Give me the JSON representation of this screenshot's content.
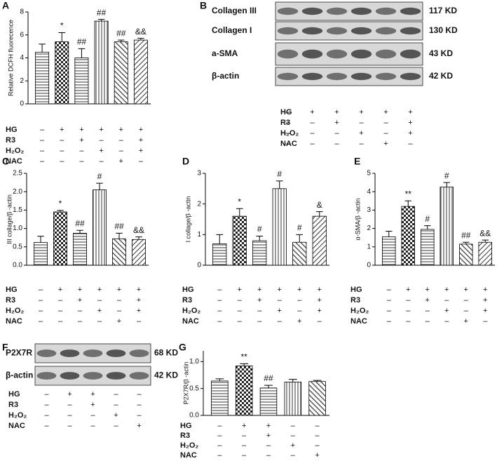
{
  "chart_data": [
    {
      "panel": "A",
      "type": "bar",
      "ylabel": "Relative DCFH fluorecence",
      "ylim": [
        0,
        8
      ],
      "yticks": [
        0,
        2,
        4,
        6,
        8
      ],
      "values": [
        4.5,
        5.4,
        4.0,
        7.2,
        5.4,
        5.55
      ],
      "errors": [
        0.7,
        0.8,
        0.8,
        0.15,
        0.15,
        0.15
      ],
      "annotations": [
        null,
        "*",
        "##",
        "##",
        "##",
        "&&"
      ],
      "conditions": [
        {
          "name": "HG",
          "marks": [
            "–",
            "+",
            "+",
            "+",
            "+",
            "+"
          ]
        },
        {
          "name": "R3",
          "marks": [
            "–",
            "–",
            "+",
            "–",
            "–",
            "+"
          ]
        },
        {
          "name": "H₂O₂",
          "marks": [
            "–",
            "–",
            "–",
            "+",
            "–",
            "+"
          ]
        },
        {
          "name": "NAC",
          "marks": [
            "–",
            "–",
            "–",
            "–",
            "+",
            "–"
          ]
        }
      ]
    },
    {
      "panel": "B",
      "type": "blot",
      "rows": [
        {
          "name": "Collagen III",
          "size": "117 KD"
        },
        {
          "name": "Collagen I",
          "size": "130 KD"
        },
        {
          "name": "a-SMA",
          "size": "43 KD"
        },
        {
          "name": "β-actin",
          "size": "42 KD"
        }
      ],
      "conditions": [
        {
          "name": "HG",
          "marks": [
            "–",
            "+",
            "+",
            "+",
            "+",
            "+"
          ]
        },
        {
          "name": "R3",
          "marks": [
            "–",
            "–",
            "+",
            "–",
            "–",
            "+"
          ]
        },
        {
          "name": "H₂O₂",
          "marks": [
            "–",
            "–",
            "–",
            "+",
            "–",
            "+"
          ]
        },
        {
          "name": "NAC",
          "marks": [
            "–",
            "–",
            "–",
            "–",
            "+",
            "–"
          ]
        }
      ]
    },
    {
      "panel": "C",
      "type": "bar",
      "ylabel": "III collage/β -actin",
      "ylim": [
        0,
        2.5
      ],
      "yticks": [
        {
          "value": 0,
          "label": "0.0"
        },
        0.5,
        {
          "value": 1,
          "label": "1.0"
        },
        1.5,
        {
          "value": 2,
          "label": "2.0"
        },
        2.5
      ],
      "values": [
        0.62,
        1.45,
        0.87,
        2.05,
        0.72,
        0.7
      ],
      "errors": [
        0.17,
        0.04,
        0.08,
        0.18,
        0.15,
        0.07
      ],
      "annotations": [
        null,
        "*",
        "##",
        "#",
        "##",
        "&&"
      ],
      "conditions": [
        {
          "name": "HG",
          "marks": [
            "–",
            "+",
            "+",
            "+",
            "+",
            "+"
          ]
        },
        {
          "name": "R3",
          "marks": [
            "–",
            "–",
            "+",
            "–",
            "–",
            "+"
          ]
        },
        {
          "name": "H₂O₂",
          "marks": [
            "–",
            "–",
            "–",
            "+",
            "–",
            "+"
          ]
        },
        {
          "name": "NAC",
          "marks": [
            "–",
            "–",
            "–",
            "–",
            "+",
            "–"
          ]
        }
      ]
    },
    {
      "panel": "D",
      "type": "bar",
      "ylabel": "I collage/β -actin",
      "ylim": [
        0,
        3
      ],
      "yticks": [
        0,
        1,
        2,
        3
      ],
      "values": [
        0.7,
        1.6,
        0.8,
        2.5,
        0.75,
        1.6
      ],
      "errors": [
        0.3,
        0.25,
        0.15,
        0.25,
        0.25,
        0.15
      ],
      "annotations": [
        null,
        "*",
        "#",
        "#",
        "#",
        "&"
      ],
      "conditions": [
        {
          "name": "HG",
          "marks": [
            "–",
            "+",
            "+",
            "+",
            "+",
            "+"
          ]
        },
        {
          "name": "R3",
          "marks": [
            "–",
            "–",
            "+",
            "–",
            "–",
            "+"
          ]
        },
        {
          "name": "H₂O₂",
          "marks": [
            "–",
            "–",
            "–",
            "+",
            "–",
            "+"
          ]
        },
        {
          "name": "NAC",
          "marks": [
            "–",
            "–",
            "–",
            "–",
            "+",
            "–"
          ]
        }
      ]
    },
    {
      "panel": "E",
      "type": "bar",
      "ylabel": "α-SMA/β -actin",
      "ylim": [
        0,
        5
      ],
      "yticks": [
        0,
        1,
        2,
        3,
        4,
        5
      ],
      "values": [
        1.55,
        3.2,
        1.95,
        4.25,
        1.15,
        1.25
      ],
      "errors": [
        0.3,
        0.3,
        0.2,
        0.25,
        0.1,
        0.12
      ],
      "annotations": [
        null,
        "**",
        "#",
        "#",
        "##",
        "&&"
      ],
      "conditions": [
        {
          "name": "HG",
          "marks": [
            "–",
            "+",
            "+",
            "+",
            "+",
            "+"
          ]
        },
        {
          "name": "R3",
          "marks": [
            "–",
            "–",
            "+",
            "–",
            "–",
            "+"
          ]
        },
        {
          "name": "H₂O₂",
          "marks": [
            "–",
            "–",
            "–",
            "+",
            "–",
            "+"
          ]
        },
        {
          "name": "NAC",
          "marks": [
            "–",
            "–",
            "–",
            "–",
            "+",
            "–"
          ]
        }
      ]
    },
    {
      "panel": "F",
      "type": "blot",
      "rows": [
        {
          "name": "P2X7R",
          "size": "68 KD"
        },
        {
          "name": "β-actin",
          "size": "42 KD"
        }
      ],
      "conditions": [
        {
          "name": "HG",
          "marks": [
            "–",
            "+",
            "+",
            "–",
            "–"
          ]
        },
        {
          "name": "R3",
          "marks": [
            "–",
            "–",
            "+",
            "–",
            "–"
          ]
        },
        {
          "name": "H₂O₂",
          "marks": [
            "–",
            "–",
            "–",
            "+",
            "–"
          ]
        },
        {
          "name": "NAC",
          "marks": [
            "–",
            "–",
            "–",
            "–",
            "+"
          ]
        }
      ]
    },
    {
      "panel": "G",
      "type": "bar",
      "ylabel": "P2X7R/β -actin",
      "ylim": [
        0,
        1.2
      ],
      "yticks": [
        {
          "value": 0,
          "label": "0.0"
        },
        0.5,
        {
          "value": 1,
          "label": "1.0"
        }
      ],
      "values": [
        0.64,
        0.92,
        0.51,
        0.62,
        0.63
      ],
      "errors": [
        0.04,
        0.04,
        0.05,
        0.05,
        0.02
      ],
      "annotations": [
        null,
        "**",
        "##",
        null,
        null
      ],
      "conditions": [
        {
          "name": "HG",
          "marks": [
            "–",
            "+",
            "+",
            "–",
            "–"
          ]
        },
        {
          "name": "R3",
          "marks": [
            "–",
            "–",
            "+",
            "–",
            "–"
          ]
        },
        {
          "name": "H₂O₂",
          "marks": [
            "–",
            "–",
            "–",
            "+",
            "–"
          ]
        },
        {
          "name": "NAC",
          "marks": [
            "–",
            "–",
            "–",
            "–",
            "+"
          ]
        }
      ]
    }
  ]
}
